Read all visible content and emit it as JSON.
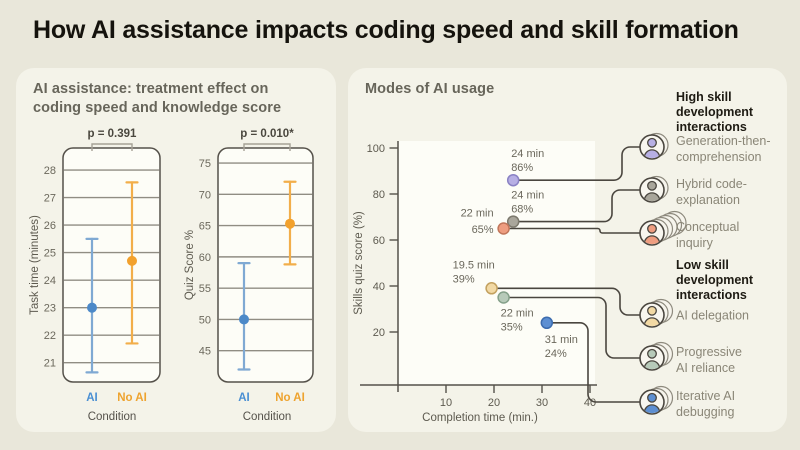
{
  "page": {
    "title": "How AI assistance impacts coding speed and skill formation",
    "background": "#e9e7da",
    "card_background": "#f4f3e9"
  },
  "left_panel": {
    "title_line1": "AI assistance: treatment effect on",
    "title_line2": "coding speed and knowledge score"
  },
  "right_panel": {
    "groups": [
      {
        "id": "high",
        "heading_lines": [
          "High skill",
          "development",
          "interactions"
        ]
      },
      {
        "id": "low",
        "heading_lines": [
          "Low skill",
          "development",
          "interactions"
        ]
      }
    ]
  },
  "chart_data": [
    {
      "type": "errorbar",
      "panel": "left",
      "ylabel": "Task time (minutes)",
      "xlabel": "Condition",
      "p_label": "p = 0.391",
      "yticks": [
        28,
        27,
        26,
        25,
        24,
        23,
        22,
        21
      ],
      "ylim": [
        20.3,
        28.8
      ],
      "grid": true,
      "series": [
        {
          "name": "AI",
          "mean": 23.0,
          "ci": [
            20.65,
            25.5
          ],
          "point_color": "#4c89c8",
          "bar_color": "#7fa9d3",
          "label_color": "#4a8fd3"
        },
        {
          "name": "No AI",
          "mean": 24.7,
          "ci": [
            21.7,
            27.55
          ],
          "point_color": "#f2a12d",
          "bar_color": "#f2ae4a",
          "label_color": "#eea32f"
        }
      ]
    },
    {
      "type": "errorbar",
      "panel": "left",
      "ylabel": "Quiz Score %",
      "xlabel": "Condition",
      "p_label": "p = 0.010*",
      "yticks": [
        75,
        70,
        65,
        60,
        55,
        50,
        45
      ],
      "ylim": [
        40.0,
        77.4
      ],
      "grid": true,
      "series": [
        {
          "name": "AI",
          "mean": 50.0,
          "ci": [
            42.0,
            59.0
          ],
          "point_color": "#4c89c8",
          "bar_color": "#7fa9d3",
          "label_color": "#4a8fd3"
        },
        {
          "name": "No AI",
          "mean": 65.3,
          "ci": [
            58.8,
            72.0
          ],
          "point_color": "#f2a12d",
          "bar_color": "#f2ae4a",
          "label_color": "#eea32f"
        }
      ]
    },
    {
      "type": "scatter",
      "panel": "right",
      "title": "Modes of AI usage",
      "xlabel": "Completion time (min.)",
      "ylabel": "Skills quiz score (%)",
      "xticks": [
        10,
        20,
        30,
        40
      ],
      "yticks": [
        20,
        40,
        60,
        80,
        100
      ],
      "xlim": [
        0,
        42
      ],
      "ylim": [
        -3,
        103
      ],
      "points": [
        {
          "mode": "Generation-then-comprehension",
          "label_lines": [
            "Generation-then-",
            "comprehension"
          ],
          "group": "high",
          "x": 24,
          "y": 86,
          "time_label": "24 min",
          "score_label": "86%",
          "color": "#b7afe4",
          "stroke": "#8a82c4",
          "stack_layers": 2
        },
        {
          "mode": "Hybrid code-explanation",
          "label_lines": [
            "Hybrid code-",
            "explanation"
          ],
          "group": "high",
          "x": 24,
          "y": 68,
          "time_label": "24 min",
          "score_label": "68%",
          "color": "#a9a69b",
          "stroke": "#7c796d",
          "stack_layers": 2
        },
        {
          "mode": "Conceptual inquiry",
          "label_lines": [
            "Conceptual",
            "inquiry"
          ],
          "group": "high",
          "x": 22,
          "y": 65,
          "time_label": "22 min",
          "score_label": "65%",
          "color": "#ee9d80",
          "stroke": "#c1765a",
          "stack_layers": 6
        },
        {
          "mode": "AI delegation",
          "label_lines": [
            "AI delegation"
          ],
          "group": "low",
          "x": 19.5,
          "y": 39,
          "time_label": "19.5 min",
          "score_label": "39%",
          "color": "#f2d9a4",
          "stroke": "#c3a15f",
          "stack_layers": 3
        },
        {
          "mode": "Progressive AI reliance",
          "label_lines": [
            "Progressive",
            "AI reliance"
          ],
          "group": "low",
          "x": 22,
          "y": 35,
          "time_label": "22 min",
          "score_label": "35%",
          "color": "#b7cab9",
          "stroke": "#84a089",
          "stack_layers": 3
        },
        {
          "mode": "Iterative AI debugging",
          "label_lines": [
            "Iterative AI",
            "debugging"
          ],
          "group": "low",
          "x": 31,
          "y": 24,
          "time_label": "31 min",
          "score_label": "24%",
          "color": "#5d8fd2",
          "stroke": "#3c6cae",
          "stack_layers": 3
        }
      ]
    }
  ]
}
